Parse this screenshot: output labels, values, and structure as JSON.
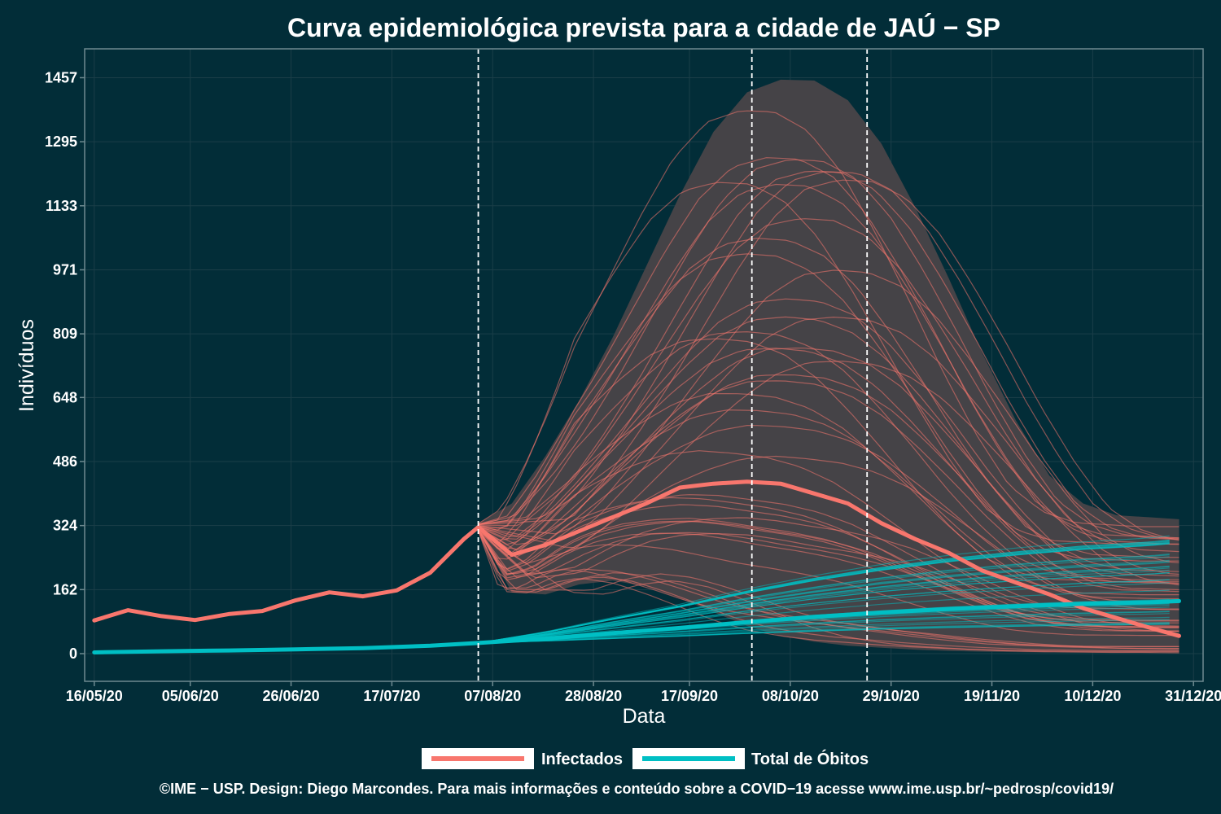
{
  "chart_data": {
    "type": "line",
    "title": "Curva epidemiológica prevista para a cidade de JAÚ − SP",
    "xlabel": "Data",
    "ylabel": "Indivíduos",
    "x_start": "2020-05-16",
    "x_end": "2020-12-28",
    "x_domain": [
      "2020-05-14",
      "2021-01-02"
    ],
    "xticks": [
      "2020-05-16",
      "2020-06-05",
      "2020-06-26",
      "2020-07-17",
      "2020-08-07",
      "2020-08-28",
      "2020-09-17",
      "2020-10-08",
      "2020-10-29",
      "2020-11-19",
      "2020-12-10",
      "2020-12-31"
    ],
    "xtick_labels": [
      "16/05/20",
      "05/06/20",
      "26/06/20",
      "17/07/20",
      "07/08/20",
      "28/08/20",
      "17/09/20",
      "08/10/20",
      "29/10/20",
      "19/11/20",
      "10/12/20",
      "31/12/20"
    ],
    "ylim": [
      -70,
      1530
    ],
    "yticks": [
      0,
      162,
      324,
      486,
      648,
      809,
      971,
      1133,
      1295,
      1457
    ],
    "vlines": [
      "2020-08-04",
      "2020-09-30",
      "2020-10-24"
    ],
    "legend_position": "bottom",
    "series": [
      {
        "name": "Infectados",
        "color": "#f8766d",
        "x": [
          "2020-05-16",
          "2020-05-23",
          "2020-05-30",
          "2020-06-06",
          "2020-06-13",
          "2020-06-20",
          "2020-06-27",
          "2020-07-04",
          "2020-07-11",
          "2020-07-18",
          "2020-07-25",
          "2020-08-01",
          "2020-08-04",
          "2020-08-11",
          "2020-08-18",
          "2020-08-25",
          "2020-09-01",
          "2020-09-08",
          "2020-09-15",
          "2020-09-22",
          "2020-09-29",
          "2020-10-06",
          "2020-10-13",
          "2020-10-20",
          "2020-10-27",
          "2020-11-03",
          "2020-11-10",
          "2020-11-17",
          "2020-11-24",
          "2020-12-01",
          "2020-12-08",
          "2020-12-15",
          "2020-12-22",
          "2020-12-28"
        ],
        "values": [
          84,
          110,
          95,
          85,
          100,
          108,
          135,
          155,
          145,
          160,
          205,
          290,
          320,
          250,
          275,
          310,
          345,
          380,
          420,
          430,
          435,
          430,
          405,
          380,
          330,
          290,
          255,
          210,
          180,
          150,
          115,
          90,
          65,
          45
        ]
      },
      {
        "name": "Total de Óbitos",
        "color": "#00bfc4",
        "x": [
          "2020-05-16",
          "2020-05-30",
          "2020-06-13",
          "2020-06-27",
          "2020-07-11",
          "2020-07-25",
          "2020-08-04",
          "2020-08-18",
          "2020-09-01",
          "2020-09-15",
          "2020-09-29",
          "2020-10-13",
          "2020-10-27",
          "2020-11-10",
          "2020-11-24",
          "2020-12-08",
          "2020-12-22",
          "2020-12-28"
        ],
        "values": [
          3,
          6,
          8,
          11,
          14,
          20,
          27,
          38,
          52,
          65,
          80,
          93,
          104,
          113,
          120,
          126,
          130,
          133
        ]
      }
    ],
    "band": {
      "x": [
        "2020-08-04",
        "2020-08-11",
        "2020-08-18",
        "2020-08-25",
        "2020-09-01",
        "2020-09-08",
        "2020-09-15",
        "2020-09-22",
        "2020-09-29",
        "2020-10-06",
        "2020-10-13",
        "2020-10-20",
        "2020-10-27",
        "2020-11-03",
        "2020-11-10",
        "2020-11-17",
        "2020-11-24",
        "2020-12-01",
        "2020-12-08",
        "2020-12-15",
        "2020-12-22",
        "2020-12-28"
      ],
      "upper": [
        330,
        380,
        500,
        640,
        800,
        980,
        1160,
        1320,
        1420,
        1452,
        1450,
        1400,
        1290,
        1130,
        950,
        760,
        590,
        450,
        380,
        350,
        345,
        340
      ],
      "lower": [
        310,
        155,
        150,
        175,
        185,
        170,
        140,
        105,
        70,
        45,
        30,
        20,
        15,
        10,
        7,
        5,
        4,
        3,
        3,
        2,
        2,
        2
      ]
    }
  },
  "legend": {
    "items": [
      {
        "label": "Infectados",
        "color": "#f8766d"
      },
      {
        "label": "Total de Óbitos",
        "color": "#00bfc4"
      }
    ]
  },
  "caption": "©IME − USP. Design: Diego Marcondes. Para mais informações e conteúdo sobre a COVID−19 acesse www.ime.usp.br/~pedrosp/covid19/",
  "colors": {
    "background": "#022d38",
    "panel_border": "#6e8a90",
    "band": "#454347",
    "grid": "#1b3e48",
    "vline": "#ffffff"
  }
}
